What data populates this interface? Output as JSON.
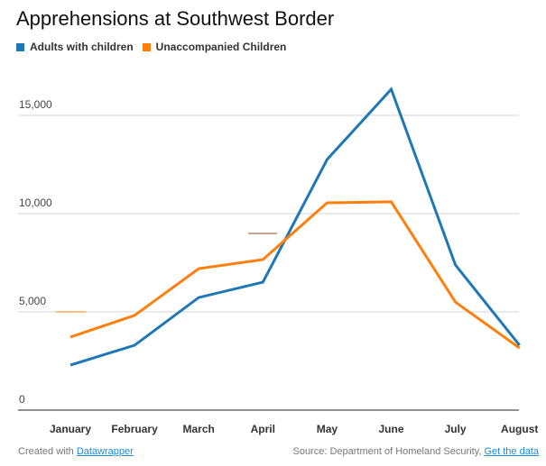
{
  "chart_data": {
    "type": "line",
    "title": "Apprehensions at Southwest Border",
    "xlabel": "",
    "ylabel": "",
    "categories": [
      "January",
      "February",
      "March",
      "April",
      "May",
      "June",
      "July",
      "August"
    ],
    "ylim": [
      0,
      15000
    ],
    "yticks": [
      0,
      5000,
      10000,
      15000
    ],
    "ytick_labels": [
      "0",
      "5,000",
      "10,000",
      "15,000"
    ],
    "grid": true,
    "legend_position": "top-left",
    "series": [
      {
        "name": "Adults with children",
        "color": "#1f77b4",
        "values": [
          2290,
          3300,
          5730,
          6510,
          12750,
          16330,
          7390,
          3300
        ]
      },
      {
        "name": "Unaccompanied Children",
        "color": "#ff7f0e",
        "values": [
          3720,
          4820,
          7200,
          7660,
          10550,
          10600,
          5500,
          3160
        ]
      }
    ]
  },
  "footer": {
    "created_prefix": "Created with",
    "created_link": "Datawrapper",
    "source": "Source: Department of Homeland Security,",
    "data_link": "Get the data"
  }
}
